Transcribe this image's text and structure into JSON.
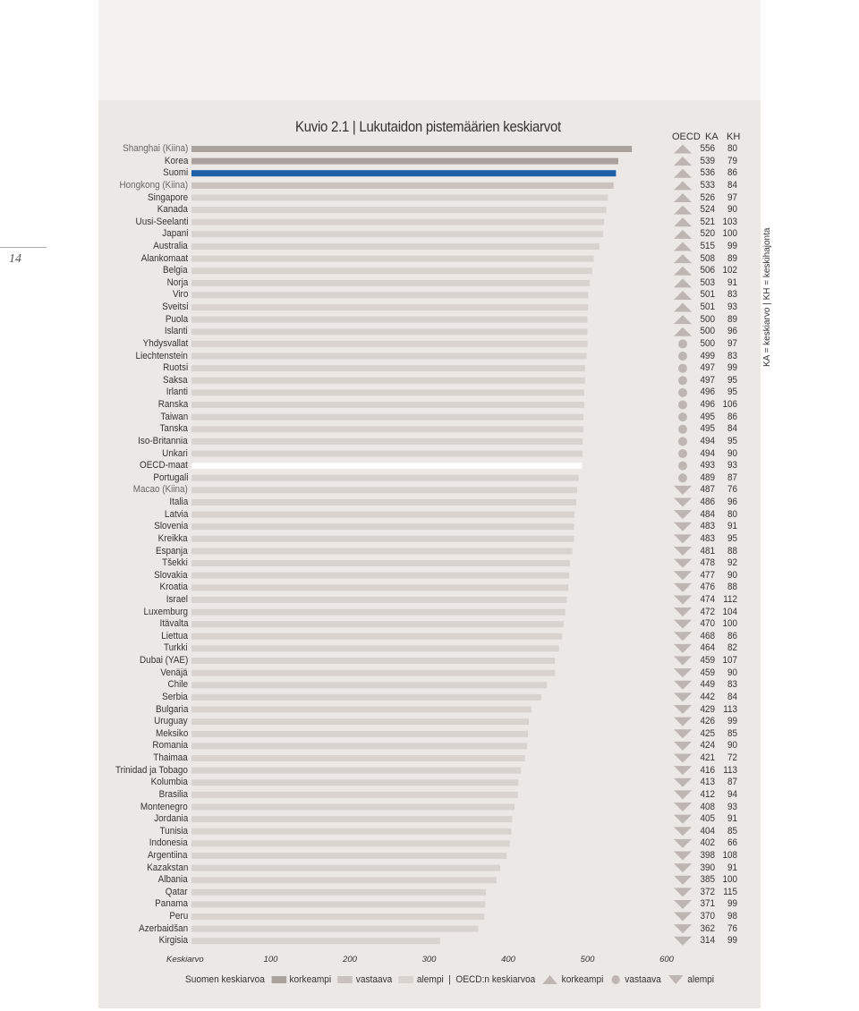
{
  "page_number": "14",
  "chart_data": {
    "type": "bar",
    "orientation": "horizontal",
    "title": "Kuvio 2.1 | Lukutaidon pistemäärien keskiarvot",
    "xlabel": "Keskiarvo",
    "xlim": [
      0,
      600
    ],
    "xticks": [
      100,
      200,
      300,
      400,
      500,
      600
    ],
    "column_headers": {
      "oecd": "OECD",
      "ka": "KA",
      "kh": "KH"
    },
    "side_note": "KA = keskiarvo  |  KH = keskihajonta",
    "colors": {
      "higher": "#a9a19c",
      "similar": "#c9c2be",
      "lower": "#d9d3d0",
      "finland": "#1f5fa8",
      "oecd_row": "#ffffff",
      "oecd_marker": "#bdb6b2"
    },
    "rows": [
      {
        "country": "Shanghai (Kiina)",
        "ka": 556,
        "kh": 80,
        "oecd": "up",
        "fin": "higher",
        "partner": true
      },
      {
        "country": "Korea",
        "ka": 539,
        "kh": 79,
        "oecd": "up",
        "fin": "higher"
      },
      {
        "country": "Suomi",
        "ka": 536,
        "kh": 86,
        "oecd": "up",
        "fin": "finland"
      },
      {
        "country": "Hongkong (Kiina)",
        "ka": 533,
        "kh": 84,
        "oecd": "up",
        "fin": "similar",
        "partner": true
      },
      {
        "country": "Singapore",
        "ka": 526,
        "kh": 97,
        "oecd": "up",
        "fin": "lower"
      },
      {
        "country": "Kanada",
        "ka": 524,
        "kh": 90,
        "oecd": "up",
        "fin": "lower"
      },
      {
        "country": "Uusi-Seelanti",
        "ka": 521,
        "kh": 103,
        "oecd": "up",
        "fin": "lower"
      },
      {
        "country": "Japani",
        "ka": 520,
        "kh": 100,
        "oecd": "up",
        "fin": "lower"
      },
      {
        "country": "Australia",
        "ka": 515,
        "kh": 99,
        "oecd": "up",
        "fin": "lower"
      },
      {
        "country": "Alankomaat",
        "ka": 508,
        "kh": 89,
        "oecd": "up",
        "fin": "lower"
      },
      {
        "country": "Belgia",
        "ka": 506,
        "kh": 102,
        "oecd": "up",
        "fin": "lower"
      },
      {
        "country": "Norja",
        "ka": 503,
        "kh": 91,
        "oecd": "up",
        "fin": "lower"
      },
      {
        "country": "Viro",
        "ka": 501,
        "kh": 83,
        "oecd": "up",
        "fin": "lower"
      },
      {
        "country": "Sveitsi",
        "ka": 501,
        "kh": 93,
        "oecd": "up",
        "fin": "lower"
      },
      {
        "country": "Puola",
        "ka": 500,
        "kh": 89,
        "oecd": "up",
        "fin": "lower"
      },
      {
        "country": "Islanti",
        "ka": 500,
        "kh": 96,
        "oecd": "up",
        "fin": "lower"
      },
      {
        "country": "Yhdysvallat",
        "ka": 500,
        "kh": 97,
        "oecd": "same",
        "fin": "lower"
      },
      {
        "country": "Liechtenstein",
        "ka": 499,
        "kh": 83,
        "oecd": "same",
        "fin": "lower"
      },
      {
        "country": "Ruotsi",
        "ka": 497,
        "kh": 99,
        "oecd": "same",
        "fin": "lower"
      },
      {
        "country": "Saksa",
        "ka": 497,
        "kh": 95,
        "oecd": "same",
        "fin": "lower"
      },
      {
        "country": "Irlanti",
        "ka": 496,
        "kh": 95,
        "oecd": "same",
        "fin": "lower"
      },
      {
        "country": "Ranska",
        "ka": 496,
        "kh": 106,
        "oecd": "same",
        "fin": "lower"
      },
      {
        "country": "Taiwan",
        "ka": 495,
        "kh": 86,
        "oecd": "same",
        "fin": "lower"
      },
      {
        "country": "Tanska",
        "ka": 495,
        "kh": 84,
        "oecd": "same",
        "fin": "lower"
      },
      {
        "country": "Iso-Britannia",
        "ka": 494,
        "kh": 95,
        "oecd": "same",
        "fin": "lower"
      },
      {
        "country": "Unkari",
        "ka": 494,
        "kh": 90,
        "oecd": "same",
        "fin": "lower"
      },
      {
        "country": "OECD-maat",
        "ka": 493,
        "kh": 93,
        "oecd": "same",
        "fin": "oecd"
      },
      {
        "country": "Portugali",
        "ka": 489,
        "kh": 87,
        "oecd": "same",
        "fin": "lower"
      },
      {
        "country": "Macao (Kiina)",
        "ka": 487,
        "kh": 76,
        "oecd": "down",
        "fin": "lower",
        "partner": true
      },
      {
        "country": "Italia",
        "ka": 486,
        "kh": 96,
        "oecd": "down",
        "fin": "lower"
      },
      {
        "country": "Latvia",
        "ka": 484,
        "kh": 80,
        "oecd": "down",
        "fin": "lower"
      },
      {
        "country": "Slovenia",
        "ka": 483,
        "kh": 91,
        "oecd": "down",
        "fin": "lower"
      },
      {
        "country": "Kreikka",
        "ka": 483,
        "kh": 95,
        "oecd": "down",
        "fin": "lower"
      },
      {
        "country": "Espanja",
        "ka": 481,
        "kh": 88,
        "oecd": "down",
        "fin": "lower"
      },
      {
        "country": "Tšekki",
        "ka": 478,
        "kh": 92,
        "oecd": "down",
        "fin": "lower"
      },
      {
        "country": "Slovakia",
        "ka": 477,
        "kh": 90,
        "oecd": "down",
        "fin": "lower"
      },
      {
        "country": "Kroatia",
        "ka": 476,
        "kh": 88,
        "oecd": "down",
        "fin": "lower"
      },
      {
        "country": "Israel",
        "ka": 474,
        "kh": 112,
        "oecd": "down",
        "fin": "lower"
      },
      {
        "country": "Luxemburg",
        "ka": 472,
        "kh": 104,
        "oecd": "down",
        "fin": "lower"
      },
      {
        "country": "Itävalta",
        "ka": 470,
        "kh": 100,
        "oecd": "down",
        "fin": "lower"
      },
      {
        "country": "Liettua",
        "ka": 468,
        "kh": 86,
        "oecd": "down",
        "fin": "lower"
      },
      {
        "country": "Turkki",
        "ka": 464,
        "kh": 82,
        "oecd": "down",
        "fin": "lower"
      },
      {
        "country": "Dubai (YAE)",
        "ka": 459,
        "kh": 107,
        "oecd": "down",
        "fin": "lower"
      },
      {
        "country": "Venäjä",
        "ka": 459,
        "kh": 90,
        "oecd": "down",
        "fin": "lower"
      },
      {
        "country": "Chile",
        "ka": 449,
        "kh": 83,
        "oecd": "down",
        "fin": "lower"
      },
      {
        "country": "Serbia",
        "ka": 442,
        "kh": 84,
        "oecd": "down",
        "fin": "lower"
      },
      {
        "country": "Bulgaria",
        "ka": 429,
        "kh": 113,
        "oecd": "down",
        "fin": "lower"
      },
      {
        "country": "Uruguay",
        "ka": 426,
        "kh": 99,
        "oecd": "down",
        "fin": "lower"
      },
      {
        "country": "Meksiko",
        "ka": 425,
        "kh": 85,
        "oecd": "down",
        "fin": "lower"
      },
      {
        "country": "Romania",
        "ka": 424,
        "kh": 90,
        "oecd": "down",
        "fin": "lower"
      },
      {
        "country": "Thaimaa",
        "ka": 421,
        "kh": 72,
        "oecd": "down",
        "fin": "lower"
      },
      {
        "country": "Trinidad ja Tobago",
        "ka": 416,
        "kh": 113,
        "oecd": "down",
        "fin": "lower"
      },
      {
        "country": "Kolumbia",
        "ka": 413,
        "kh": 87,
        "oecd": "down",
        "fin": "lower"
      },
      {
        "country": "Brasilia",
        "ka": 412,
        "kh": 94,
        "oecd": "down",
        "fin": "lower"
      },
      {
        "country": "Montenegro",
        "ka": 408,
        "kh": 93,
        "oecd": "down",
        "fin": "lower"
      },
      {
        "country": "Jordania",
        "ka": 405,
        "kh": 91,
        "oecd": "down",
        "fin": "lower"
      },
      {
        "country": "Tunisia",
        "ka": 404,
        "kh": 85,
        "oecd": "down",
        "fin": "lower"
      },
      {
        "country": "Indonesia",
        "ka": 402,
        "kh": 66,
        "oecd": "down",
        "fin": "lower"
      },
      {
        "country": "Argentiina",
        "ka": 398,
        "kh": 108,
        "oecd": "down",
        "fin": "lower"
      },
      {
        "country": "Kazakstan",
        "ka": 390,
        "kh": 91,
        "oecd": "down",
        "fin": "lower"
      },
      {
        "country": "Albania",
        "ka": 385,
        "kh": 100,
        "oecd": "down",
        "fin": "lower"
      },
      {
        "country": "Qatar",
        "ka": 372,
        "kh": 115,
        "oecd": "down",
        "fin": "lower"
      },
      {
        "country": "Panama",
        "ka": 371,
        "kh": 99,
        "oecd": "down",
        "fin": "lower"
      },
      {
        "country": "Peru",
        "ka": 370,
        "kh": 98,
        "oecd": "down",
        "fin": "lower"
      },
      {
        "country": "Azerbaidšan",
        "ka": 362,
        "kh": 76,
        "oecd": "down",
        "fin": "lower"
      },
      {
        "country": "Kirgisia",
        "ka": 314,
        "kh": 99,
        "oecd": "down",
        "fin": "lower"
      }
    ],
    "legend": {
      "finland_label": "Suomen keskiarvoa",
      "higher": "korkeampi",
      "similar": "vastaava",
      "lower": "alempi",
      "separator": "|",
      "oecd_label": "OECD:n keskiarvoa",
      "oecd_higher": "korkeampi",
      "oecd_similar": "vastaava",
      "oecd_lower": "alempi"
    }
  }
}
